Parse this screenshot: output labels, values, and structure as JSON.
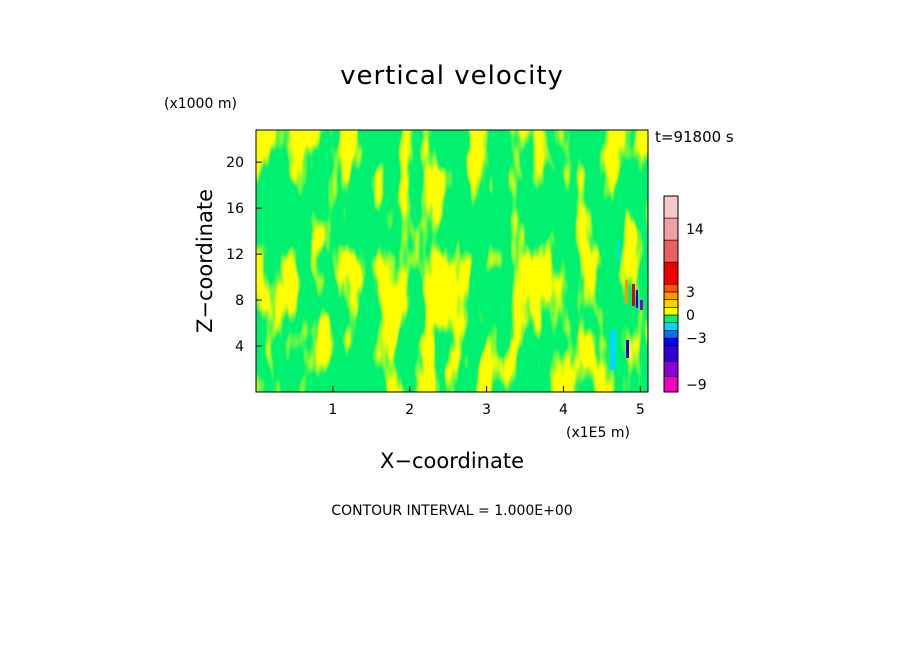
{
  "chart_data": {
    "type": "heatmap",
    "title": "vertical velocity",
    "xlabel": "X−coordinate",
    "ylabel": "Z−coordinate",
    "x_unit": "(x1E5 m)",
    "y_unit": "(x1000 m)",
    "xlim": [
      0,
      5.1
    ],
    "ylim": [
      0,
      22.8
    ],
    "x_ticks": [
      "1",
      "2",
      "3",
      "4",
      "5"
    ],
    "x_tick_values": [
      1,
      2,
      3,
      4,
      5
    ],
    "y_ticks": [
      "4",
      "8",
      "12",
      "16",
      "20"
    ],
    "y_tick_values": [
      4,
      8,
      12,
      16,
      20
    ],
    "time_label": "t=91800 s",
    "contour_interval": "CONTOUR INTERVAL = 1.000E+00",
    "colorbar": {
      "tick_labels": [
        "14",
        "3",
        "0",
        "−3",
        "−9"
      ],
      "tick_values": [
        14,
        3,
        0,
        -3,
        -9
      ],
      "bands": [
        {
          "lo": -10,
          "hi": -8,
          "color": "#f000c0"
        },
        {
          "lo": -8,
          "hi": -6,
          "color": "#8a00d0"
        },
        {
          "lo": -6,
          "hi": -4,
          "color": "#3000d8"
        },
        {
          "lo": -4,
          "hi": -3,
          "color": "#0000ff"
        },
        {
          "lo": -3,
          "hi": -2,
          "color": "#0070ff"
        },
        {
          "lo": -2,
          "hi": -1,
          "color": "#00d8ff"
        },
        {
          "lo": -1,
          "hi": 0,
          "color": "#00f070"
        },
        {
          "lo": 0,
          "hi": 1,
          "color": "#ffff00"
        },
        {
          "lo": 1,
          "hi": 2,
          "color": "#ffd000"
        },
        {
          "lo": 2,
          "hi": 3,
          "color": "#ff9800"
        },
        {
          "lo": 3,
          "hi": 4,
          "color": "#ff5000"
        },
        {
          "lo": 4,
          "hi": 8,
          "color": "#ee0000"
        },
        {
          "lo": 8,
          "hi": 12,
          "color": "#e86060"
        },
        {
          "lo": 12,
          "hi": 16,
          "color": "#f0a0a0"
        },
        {
          "lo": 16,
          "hi": 20,
          "color": "#f8c8c8"
        }
      ]
    },
    "field_colors": {
      "negative_small": "#00f070",
      "positive_small": "#ffff00"
    }
  }
}
